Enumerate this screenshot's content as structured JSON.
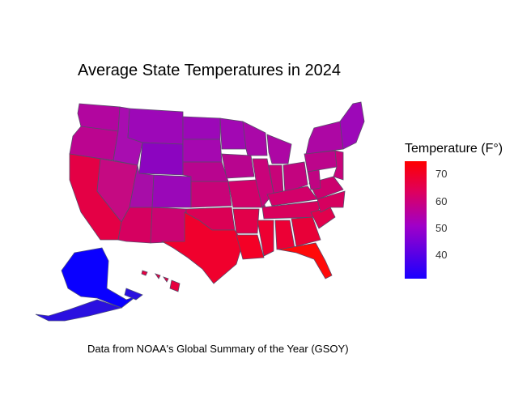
{
  "title": "Average State Temperatures in 2024",
  "caption": "Data from NOAA's Global Summary of the Year (GSOY)",
  "legend": {
    "title": "Temperature (F°)",
    "ticks": [
      "70",
      "60",
      "50",
      "40"
    ],
    "low_color": "#1a00ff",
    "mid_color": "#a000c8",
    "high_color": "#ff0000"
  },
  "region_fill_hint": {
    "coldest_region": "Alaska",
    "warmest_region": "Florida"
  }
}
